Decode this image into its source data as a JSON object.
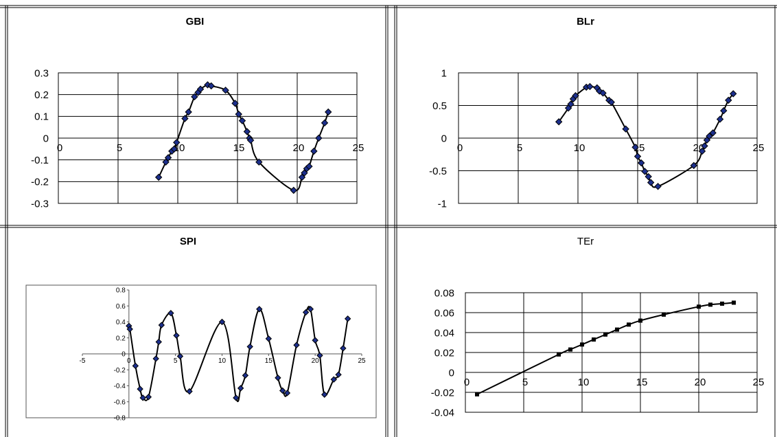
{
  "chart_data": [
    {
      "type": "scatter",
      "title": "GBI",
      "xlabel": "",
      "ylabel": "",
      "xlim": [
        0,
        25
      ],
      "ylim": [
        -0.3,
        0.3
      ],
      "xticks": [
        "0",
        "5",
        "10",
        "15",
        "20",
        "25"
      ],
      "yticks": [
        "-0.3",
        "-0.2",
        "-0.1",
        "0",
        "0.1",
        "0.2",
        "0.3"
      ],
      "yticks_values": [
        -0.3,
        -0.2,
        -0.1,
        0,
        0.1,
        0.2,
        0.3
      ],
      "xticks_values": [
        0,
        5,
        10,
        15,
        20,
        25
      ],
      "grid": true,
      "marker": "diamond",
      "marker_color": "#1c2f8c",
      "series": [
        {
          "x": [
            8.4,
            9.0,
            9.2,
            9.5,
            9.7,
            9.9,
            10.6,
            10.9,
            11.4,
            11.7,
            11.9,
            12.5,
            12.8,
            14.0,
            14.8,
            15.1,
            15.4,
            15.8,
            16.0,
            16.1,
            16.8,
            19.7,
            20.4,
            20.6,
            20.8,
            21.0,
            21.4,
            21.8,
            22.3,
            22.6
          ],
          "y": [
            -0.18,
            -0.11,
            -0.09,
            -0.06,
            -0.05,
            -0.02,
            0.09,
            0.12,
            0.19,
            0.21,
            0.225,
            0.245,
            0.24,
            0.22,
            0.16,
            0.11,
            0.08,
            0.03,
            0.0,
            -0.01,
            -0.11,
            -0.24,
            -0.18,
            -0.16,
            -0.14,
            -0.13,
            -0.06,
            0.0,
            0.07,
            0.12
          ]
        }
      ]
    },
    {
      "type": "scatter",
      "title": "BLr",
      "xlabel": "",
      "ylabel": "",
      "xlim": [
        0,
        25
      ],
      "ylim": [
        -1,
        1
      ],
      "xticks": [
        "0",
        "5",
        "10",
        "15",
        "20",
        "25"
      ],
      "yticks": [
        "-1",
        "-0.5",
        "0",
        "0.5",
        "1"
      ],
      "yticks_values": [
        -1,
        -0.5,
        0,
        0.5,
        1
      ],
      "xticks_values": [
        0,
        5,
        10,
        15,
        20,
        25
      ],
      "grid": true,
      "marker": "diamond",
      "marker_color": "#1c2f8c",
      "series": [
        {
          "x": [
            8.4,
            9.2,
            9.4,
            9.6,
            9.8,
            10.7,
            11.0,
            11.6,
            11.8,
            12.1,
            12.6,
            12.8,
            14.0,
            14.8,
            15.0,
            15.3,
            15.6,
            15.9,
            16.1,
            16.7,
            19.7,
            20.4,
            20.6,
            20.8,
            21.0,
            21.3,
            21.9,
            22.2,
            22.6,
            23.0
          ],
          "y": [
            0.25,
            0.46,
            0.52,
            0.6,
            0.65,
            0.78,
            0.79,
            0.77,
            0.72,
            0.69,
            0.58,
            0.55,
            0.14,
            -0.14,
            -0.28,
            -0.38,
            -0.51,
            -0.59,
            -0.68,
            -0.74,
            -0.42,
            -0.2,
            -0.12,
            -0.03,
            0.03,
            0.08,
            0.29,
            0.42,
            0.58,
            0.68
          ]
        }
      ]
    },
    {
      "type": "scatter",
      "title": "SPI",
      "xlabel": "",
      "ylabel": "",
      "xlim": [
        -5,
        25
      ],
      "ylim": [
        -0.8,
        0.8
      ],
      "xticks": [
        "-5",
        "0",
        "5",
        "10",
        "15",
        "20",
        "25"
      ],
      "yticks": [
        "-0.8",
        "-0.6",
        "-0.4",
        "-0.2",
        "0",
        "0.2",
        "0.4",
        "0.6",
        "0.8"
      ],
      "yticks_values": [
        -0.8,
        -0.6,
        -0.4,
        -0.2,
        0,
        0.2,
        0.4,
        0.6,
        0.8
      ],
      "xticks_values": [
        -5,
        0,
        5,
        10,
        15,
        20,
        25
      ],
      "grid": false,
      "marker": "diamond",
      "marker_color": "#1c2f8c",
      "series": [
        {
          "x": [
            0.0,
            0.1,
            0.7,
            1.2,
            1.5,
            2.1,
            2.9,
            3.2,
            3.5,
            4.5,
            5.1,
            5.5,
            6.5,
            10.0,
            11.5,
            12.0,
            12.5,
            13.0,
            14.0,
            15.0,
            16.0,
            16.5,
            17.0,
            18.0,
            19.0,
            19.5,
            20.0,
            20.5,
            21.0,
            22.0,
            22.5,
            23.0,
            23.5
          ],
          "y": [
            0.35,
            0.31,
            -0.15,
            -0.44,
            -0.55,
            -0.54,
            -0.06,
            0.15,
            0.36,
            0.51,
            0.23,
            -0.03,
            -0.47,
            0.4,
            -0.55,
            -0.43,
            -0.27,
            0.09,
            0.56,
            0.19,
            -0.3,
            -0.46,
            -0.49,
            0.11,
            0.52,
            0.56,
            0.17,
            -0.02,
            -0.51,
            -0.32,
            -0.26,
            0.07,
            0.44
          ]
        }
      ]
    },
    {
      "type": "line",
      "title": "TEr",
      "xlabel": "",
      "ylabel": "",
      "xlim": [
        0,
        25
      ],
      "ylim": [
        -0.04,
        0.08
      ],
      "xticks": [
        "0",
        "5",
        "10",
        "15",
        "20",
        "25"
      ],
      "yticks": [
        "-0.04",
        "-0.02",
        "0",
        "0.02",
        "0.04",
        "0.06",
        "0.08"
      ],
      "yticks_values": [
        -0.04,
        -0.02,
        0,
        0.02,
        0.04,
        0.06,
        0.08
      ],
      "xticks_values": [
        0,
        5,
        10,
        15,
        20,
        25
      ],
      "grid": true,
      "marker": "square",
      "marker_color": "#000000",
      "series": [
        {
          "x": [
            1,
            8,
            9,
            10,
            11,
            12,
            13,
            14,
            15,
            17,
            20,
            21,
            22,
            23
          ],
          "y": [
            -0.022,
            0.018,
            0.023,
            0.028,
            0.033,
            0.038,
            0.043,
            0.048,
            0.052,
            0.058,
            0.066,
            0.068,
            0.069,
            0.07
          ]
        }
      ]
    }
  ]
}
